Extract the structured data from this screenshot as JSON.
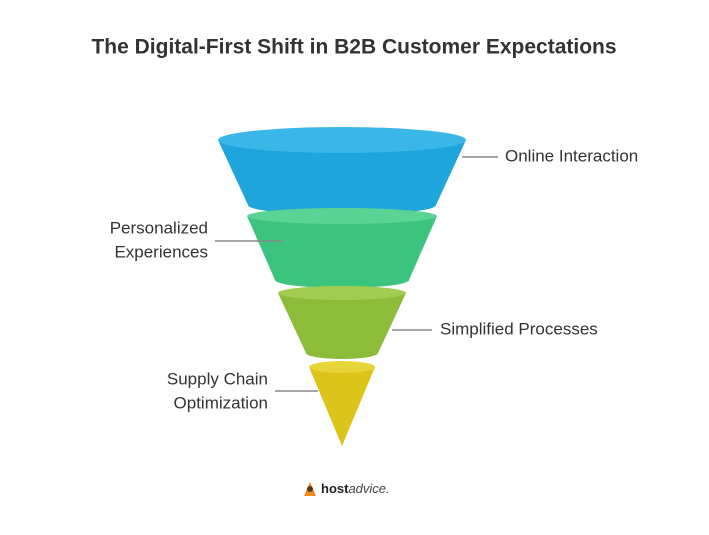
{
  "title": "The Digital-First Shift in B2B Customer Expectations",
  "stages": [
    {
      "lines": [
        "Online Interaction"
      ]
    },
    {
      "lines": [
        "Personalized",
        "Experiences"
      ]
    },
    {
      "lines": [
        "Simplified Processes"
      ]
    },
    {
      "lines": [
        "Supply Chain",
        "Optimization"
      ]
    }
  ],
  "logo": {
    "bold": "host",
    "rest": "advice."
  }
}
